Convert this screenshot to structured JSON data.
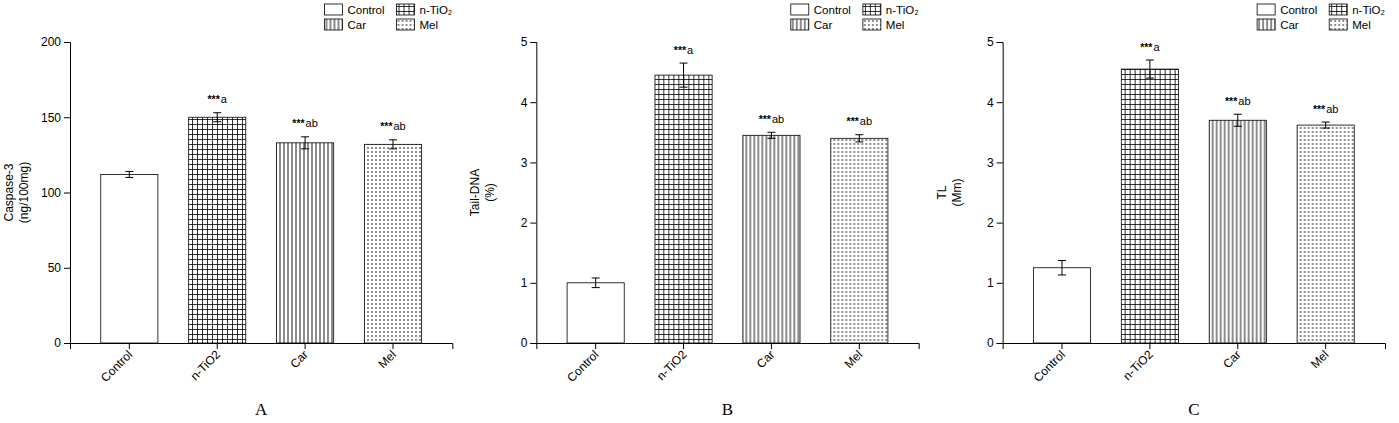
{
  "chart_data": [
    {
      "type": "bar",
      "xlabel": "A",
      "ylabel": "Caspase-3\n(ng/100mg)",
      "categories": [
        "Control",
        "n-TiO2",
        "Car",
        "Mel"
      ],
      "series": [
        {
          "name": "Control",
          "values": [
            112,
            null,
            null,
            null
          ],
          "errors": [
            2,
            null,
            null,
            null
          ]
        },
        {
          "name": "n-TiO₂",
          "values": [
            null,
            150,
            null,
            null
          ],
          "errors": [
            null,
            3,
            null,
            null
          ]
        },
        {
          "name": "Car",
          "values": [
            null,
            null,
            133,
            null
          ],
          "errors": [
            null,
            null,
            4,
            null
          ]
        },
        {
          "name": "Mel",
          "values": [
            null,
            null,
            null,
            132
          ],
          "errors": [
            null,
            null,
            null,
            3
          ]
        }
      ],
      "annotations": [
        null,
        "***a",
        "***ab",
        "***ab"
      ],
      "color": "#000000",
      "ylim": [
        0,
        200
      ],
      "yticks": [
        0,
        50,
        100,
        150,
        200
      ],
      "legend": "upper right"
    },
    {
      "type": "bar",
      "xlabel": "B",
      "ylabel": "Tail-DNA\n(%)",
      "categories": [
        "Control",
        "n-TiO2",
        "Car",
        "Mel"
      ],
      "series": [
        {
          "name": "Control",
          "values": [
            1.0,
            null,
            null,
            null
          ],
          "errors": [
            0.08,
            null,
            null,
            null
          ]
        },
        {
          "name": "n-TiO₂",
          "values": [
            null,
            4.45,
            null,
            null
          ],
          "errors": [
            null,
            0.2,
            null,
            null
          ]
        },
        {
          "name": "Car",
          "values": [
            null,
            null,
            3.45,
            null
          ],
          "errors": [
            null,
            null,
            0.05,
            null
          ]
        },
        {
          "name": "Mel",
          "values": [
            null,
            null,
            null,
            3.4
          ],
          "errors": [
            null,
            null,
            null,
            0.06
          ]
        }
      ],
      "annotations": [
        null,
        "***a",
        "***ab",
        "***ab"
      ],
      "color": "#000000",
      "ylim": [
        0,
        5
      ],
      "yticks": [
        0,
        1,
        2,
        3,
        4,
        5
      ],
      "legend": "upper right"
    },
    {
      "type": "bar",
      "xlabel": "C",
      "ylabel": "TL\n(Mm)",
      "categories": [
        "Control",
        "n-TiO2",
        "Car",
        "Mel"
      ],
      "series": [
        {
          "name": "Control",
          "values": [
            1.25,
            null,
            null,
            null
          ],
          "errors": [
            0.12,
            null,
            null,
            null
          ]
        },
        {
          "name": "n-TiO₂",
          "values": [
            null,
            4.55,
            null,
            null
          ],
          "errors": [
            null,
            0.15,
            null,
            null
          ]
        },
        {
          "name": "Car",
          "values": [
            null,
            null,
            3.7,
            null
          ],
          "errors": [
            null,
            null,
            0.1,
            null
          ]
        },
        {
          "name": "Mel",
          "values": [
            null,
            null,
            null,
            3.62
          ],
          "errors": [
            null,
            null,
            null,
            0.05
          ]
        }
      ],
      "annotations": [
        null,
        "***a",
        "***ab",
        "***ab"
      ],
      "color": "#000000",
      "ylim": [
        0,
        5
      ],
      "yticks": [
        0,
        1,
        2,
        3,
        4,
        5
      ],
      "legend": "upper right"
    }
  ]
}
